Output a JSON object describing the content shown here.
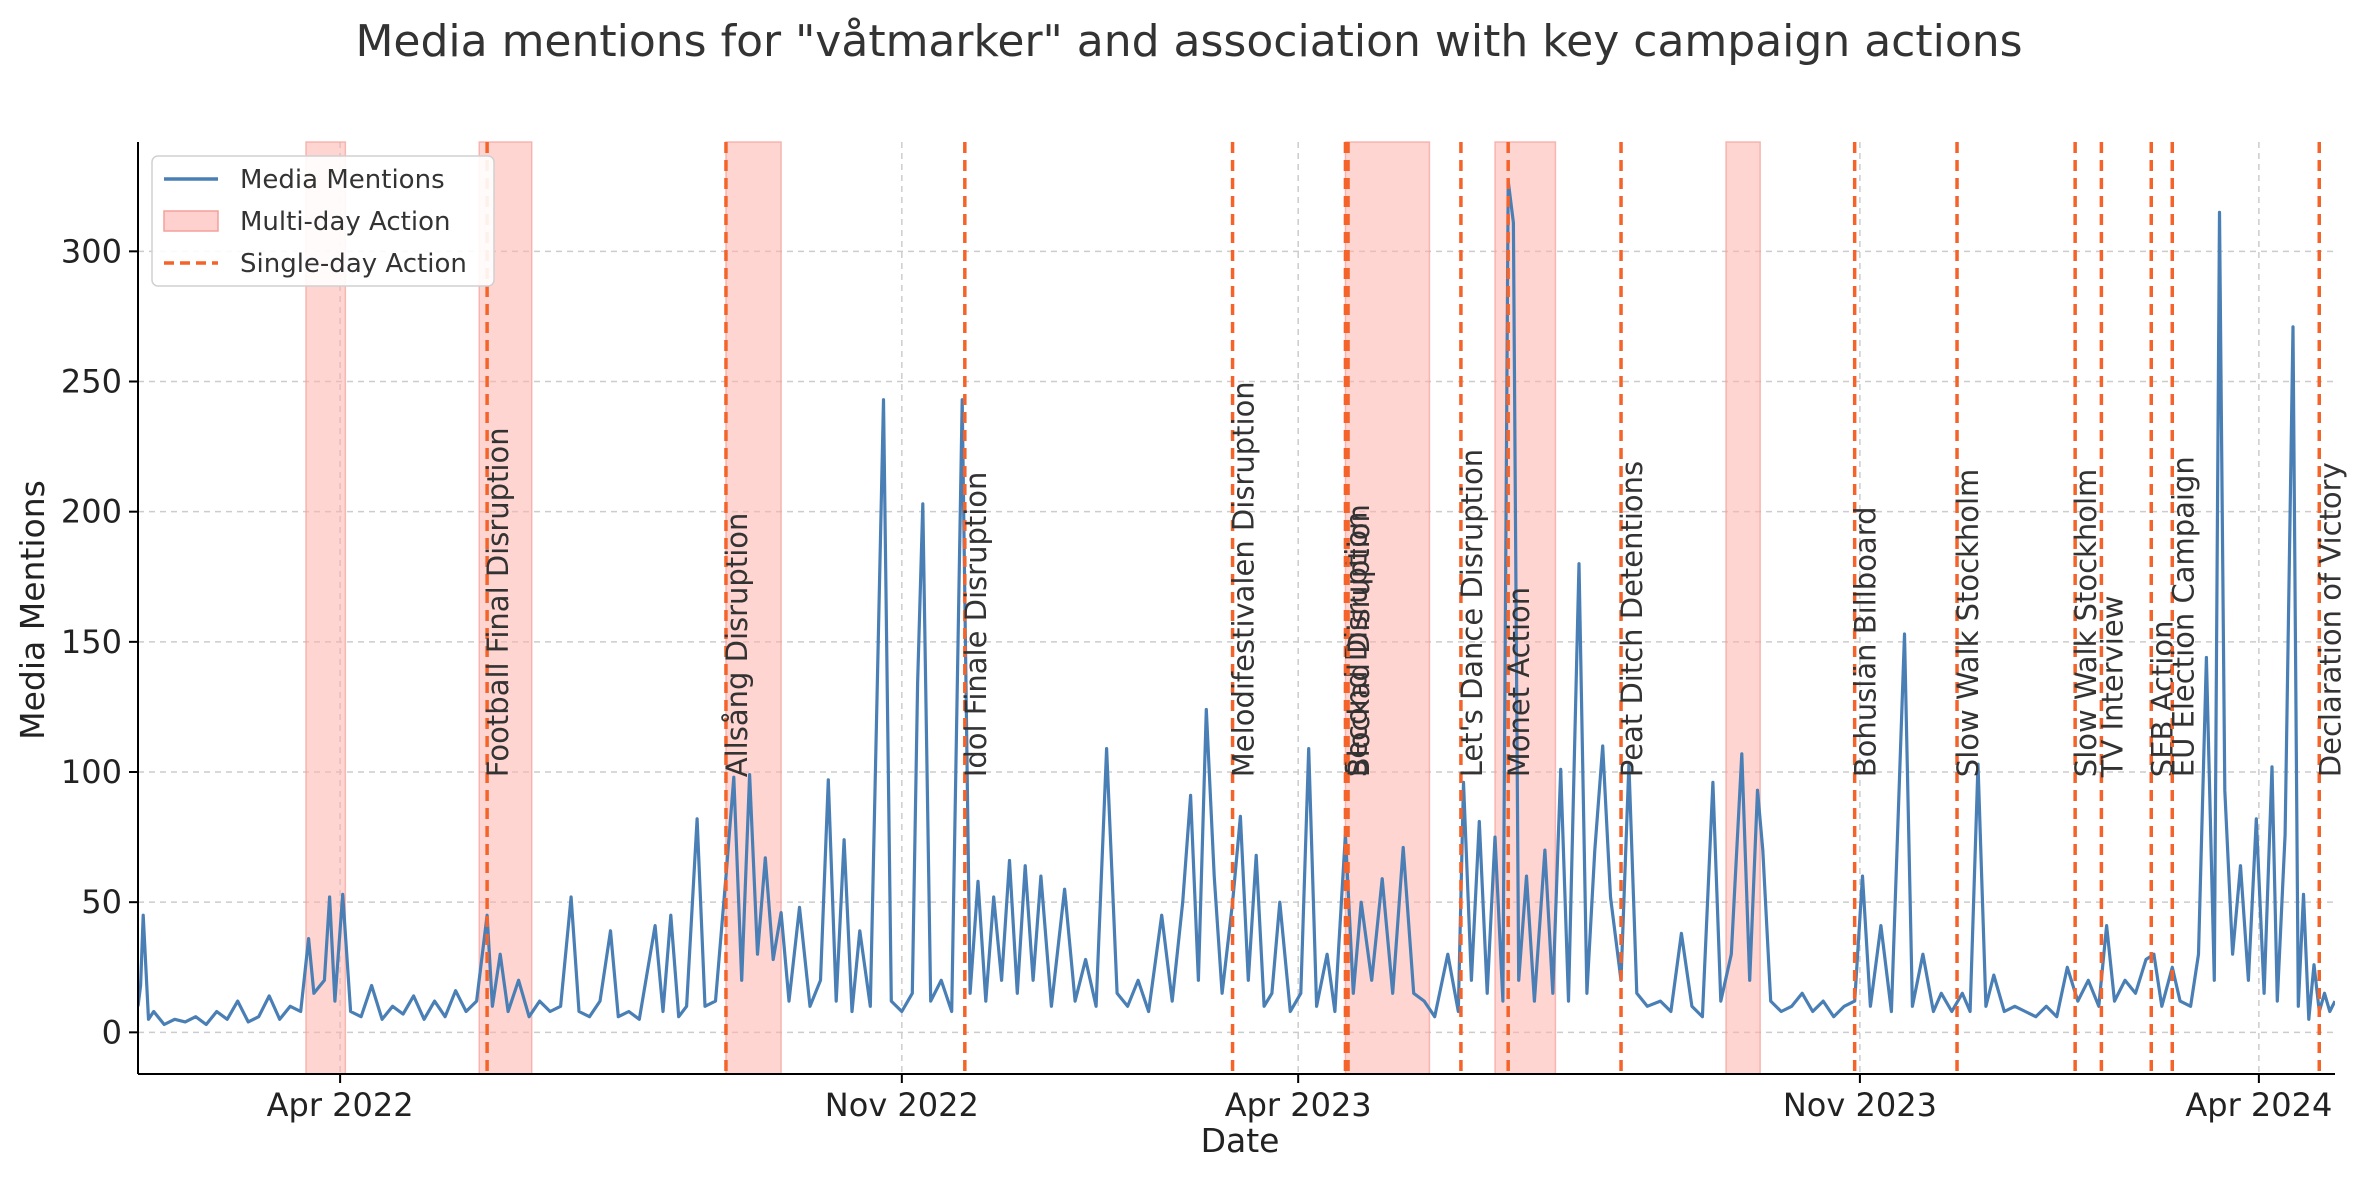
{
  "chart_data": {
    "type": "line",
    "title": "Media mentions for \"våtmarker\" and association with key campaign actions",
    "xlabel": "Date",
    "ylabel": "Media Mentions",
    "xlim": [
      "2022-01-14",
      "2024-04-30"
    ],
    "ylim": [
      -16,
      342
    ],
    "grid": true,
    "legend_position": "top-left",
    "x_ticks": [
      {
        "date": "2022-04-01",
        "label": "Apr 2022"
      },
      {
        "date": "2022-11-01",
        "label": "Nov 2022"
      },
      {
        "date": "2023-04-01",
        "label": "Apr 2023"
      },
      {
        "date": "2023-11-01",
        "label": "Nov 2023"
      },
      {
        "date": "2024-04-01",
        "label": "Apr 2024"
      }
    ],
    "y_ticks": [
      0,
      50,
      100,
      150,
      200,
      250,
      300
    ],
    "legend": [
      {
        "label": "Media Mentions",
        "kind": "line",
        "color": "#4a7fb5"
      },
      {
        "label": "Multi-day Action",
        "kind": "span",
        "color": "#ffb3ad"
      },
      {
        "label": "Single-day Action",
        "kind": "dashed",
        "color": "#f4642a"
      }
    ],
    "multi_day_actions": [
      {
        "start": "2022-03-19",
        "end": "2022-04-03"
      },
      {
        "start": "2022-05-24",
        "end": "2022-06-13"
      },
      {
        "start": "2022-08-26",
        "end": "2022-09-16"
      },
      {
        "start": "2023-04-19",
        "end": "2023-05-21"
      },
      {
        "start": "2023-06-15",
        "end": "2023-07-08"
      },
      {
        "start": "2023-09-11",
        "end": "2023-09-24"
      }
    ],
    "single_day_actions": [
      {
        "date": "2022-05-27",
        "label": "Football Final Disruption"
      },
      {
        "date": "2022-08-26",
        "label": "Allsång Disruption"
      },
      {
        "date": "2022-11-25",
        "label": "Idol Finale Disruption"
      },
      {
        "date": "2023-03-07",
        "label": "Melodifestivalen Disruption"
      },
      {
        "date": "2023-04-19",
        "label": "Second Disruption"
      },
      {
        "date": "2023-04-20",
        "label": "Blockad Disruption"
      },
      {
        "date": "2023-06-02",
        "label": "Let's Dance Disruption"
      },
      {
        "date": "2023-06-20",
        "label": "Monet Action"
      },
      {
        "date": "2023-08-02",
        "label": "Peat Ditch Detentions"
      },
      {
        "date": "2023-10-30",
        "label": "Bohuslän Billboard"
      },
      {
        "date": "2023-12-08",
        "label": "Slow Walk Stockholm"
      },
      {
        "date": "2024-01-22",
        "label": "Slow Walk Stockholm"
      },
      {
        "date": "2024-02-01",
        "label": "TV Interview"
      },
      {
        "date": "2024-02-20",
        "label": "SEB Action"
      },
      {
        "date": "2024-02-28",
        "label": "EU Election Campaign"
      },
      {
        "date": "2024-04-24",
        "label": "Declaration of Victory"
      }
    ],
    "series": [
      {
        "name": "Media Mentions",
        "color": "#4a7fb5",
        "points": [
          [
            "2022-01-14",
            10
          ],
          [
            "2022-01-15",
            18
          ],
          [
            "2022-01-16",
            45
          ],
          [
            "2022-01-18",
            5
          ],
          [
            "2022-01-20",
            8
          ],
          [
            "2022-01-24",
            3
          ],
          [
            "2022-01-28",
            5
          ],
          [
            "2022-02-01",
            4
          ],
          [
            "2022-02-05",
            6
          ],
          [
            "2022-02-09",
            3
          ],
          [
            "2022-02-13",
            8
          ],
          [
            "2022-02-17",
            5
          ],
          [
            "2022-02-21",
            12
          ],
          [
            "2022-02-25",
            4
          ],
          [
            "2022-03-01",
            6
          ],
          [
            "2022-03-05",
            14
          ],
          [
            "2022-03-09",
            5
          ],
          [
            "2022-03-13",
            10
          ],
          [
            "2022-03-17",
            8
          ],
          [
            "2022-03-20",
            36
          ],
          [
            "2022-03-22",
            15
          ],
          [
            "2022-03-26",
            20
          ],
          [
            "2022-03-28",
            52
          ],
          [
            "2022-03-30",
            12
          ],
          [
            "2022-04-02",
            53
          ],
          [
            "2022-04-05",
            8
          ],
          [
            "2022-04-09",
            6
          ],
          [
            "2022-04-13",
            18
          ],
          [
            "2022-04-17",
            5
          ],
          [
            "2022-04-21",
            10
          ],
          [
            "2022-04-25",
            7
          ],
          [
            "2022-04-29",
            14
          ],
          [
            "2022-05-03",
            5
          ],
          [
            "2022-05-07",
            12
          ],
          [
            "2022-05-11",
            6
          ],
          [
            "2022-05-15",
            16
          ],
          [
            "2022-05-19",
            8
          ],
          [
            "2022-05-23",
            12
          ],
          [
            "2022-05-27",
            45
          ],
          [
            "2022-05-29",
            10
          ],
          [
            "2022-06-01",
            30
          ],
          [
            "2022-06-04",
            8
          ],
          [
            "2022-06-08",
            20
          ],
          [
            "2022-06-12",
            6
          ],
          [
            "2022-06-16",
            12
          ],
          [
            "2022-06-20",
            8
          ],
          [
            "2022-06-24",
            10
          ],
          [
            "2022-06-28",
            52
          ],
          [
            "2022-07-01",
            8
          ],
          [
            "2022-07-05",
            6
          ],
          [
            "2022-07-09",
            12
          ],
          [
            "2022-07-13",
            39
          ],
          [
            "2022-07-16",
            6
          ],
          [
            "2022-07-20",
            8
          ],
          [
            "2022-07-24",
            5
          ],
          [
            "2022-07-30",
            41
          ],
          [
            "2022-08-02",
            8
          ],
          [
            "2022-08-05",
            45
          ],
          [
            "2022-08-08",
            6
          ],
          [
            "2022-08-11",
            10
          ],
          [
            "2022-08-15",
            82
          ],
          [
            "2022-08-18",
            10
          ],
          [
            "2022-08-22",
            12
          ],
          [
            "2022-08-26",
            60
          ],
          [
            "2022-08-29",
            98
          ],
          [
            "2022-09-01",
            20
          ],
          [
            "2022-09-04",
            99
          ],
          [
            "2022-09-07",
            30
          ],
          [
            "2022-09-10",
            67
          ],
          [
            "2022-09-13",
            28
          ],
          [
            "2022-09-16",
            46
          ],
          [
            "2022-09-19",
            12
          ],
          [
            "2022-09-23",
            48
          ],
          [
            "2022-09-27",
            10
          ],
          [
            "2022-10-01",
            20
          ],
          [
            "2022-10-04",
            97
          ],
          [
            "2022-10-07",
            12
          ],
          [
            "2022-10-10",
            74
          ],
          [
            "2022-10-13",
            8
          ],
          [
            "2022-10-16",
            39
          ],
          [
            "2022-10-20",
            10
          ],
          [
            "2022-10-25",
            243
          ],
          [
            "2022-10-28",
            12
          ],
          [
            "2022-11-01",
            8
          ],
          [
            "2022-11-05",
            15
          ],
          [
            "2022-11-07",
            134
          ],
          [
            "2022-11-09",
            203
          ],
          [
            "2022-11-12",
            12
          ],
          [
            "2022-11-16",
            20
          ],
          [
            "2022-11-20",
            8
          ],
          [
            "2022-11-24",
            243
          ],
          [
            "2022-11-27",
            15
          ],
          [
            "2022-11-30",
            58
          ],
          [
            "2022-12-03",
            12
          ],
          [
            "2022-12-06",
            52
          ],
          [
            "2022-12-09",
            20
          ],
          [
            "2022-12-12",
            66
          ],
          [
            "2022-12-15",
            15
          ],
          [
            "2022-12-18",
            64
          ],
          [
            "2022-12-21",
            20
          ],
          [
            "2022-12-24",
            60
          ],
          [
            "2022-12-28",
            10
          ],
          [
            "2023-01-02",
            55
          ],
          [
            "2023-01-06",
            12
          ],
          [
            "2023-01-10",
            28
          ],
          [
            "2023-01-14",
            10
          ],
          [
            "2023-01-18",
            109
          ],
          [
            "2023-01-22",
            15
          ],
          [
            "2023-01-26",
            10
          ],
          [
            "2023-01-30",
            20
          ],
          [
            "2023-02-03",
            8
          ],
          [
            "2023-02-08",
            45
          ],
          [
            "2023-02-12",
            12
          ],
          [
            "2023-02-16",
            50
          ],
          [
            "2023-02-19",
            91
          ],
          [
            "2023-02-22",
            20
          ],
          [
            "2023-02-25",
            124
          ],
          [
            "2023-02-28",
            60
          ],
          [
            "2023-03-03",
            15
          ],
          [
            "2023-03-07",
            50
          ],
          [
            "2023-03-10",
            83
          ],
          [
            "2023-03-13",
            20
          ],
          [
            "2023-03-16",
            68
          ],
          [
            "2023-03-19",
            10
          ],
          [
            "2023-03-22",
            15
          ],
          [
            "2023-03-25",
            50
          ],
          [
            "2023-03-29",
            8
          ],
          [
            "2023-04-02",
            15
          ],
          [
            "2023-04-05",
            109
          ],
          [
            "2023-04-08",
            10
          ],
          [
            "2023-04-12",
            30
          ],
          [
            "2023-04-15",
            8
          ],
          [
            "2023-04-19",
            76
          ],
          [
            "2023-04-22",
            15
          ],
          [
            "2023-04-25",
            50
          ],
          [
            "2023-04-29",
            20
          ],
          [
            "2023-05-03",
            59
          ],
          [
            "2023-05-07",
            15
          ],
          [
            "2023-05-11",
            71
          ],
          [
            "2023-05-15",
            15
          ],
          [
            "2023-05-19",
            12
          ],
          [
            "2023-05-23",
            6
          ],
          [
            "2023-05-28",
            30
          ],
          [
            "2023-06-01",
            8
          ],
          [
            "2023-06-03",
            96
          ],
          [
            "2023-06-06",
            20
          ],
          [
            "2023-06-09",
            81
          ],
          [
            "2023-06-12",
            15
          ],
          [
            "2023-06-15",
            75
          ],
          [
            "2023-06-18",
            12
          ],
          [
            "2023-06-20",
            327
          ],
          [
            "2023-06-22",
            311
          ],
          [
            "2023-06-24",
            20
          ],
          [
            "2023-06-27",
            60
          ],
          [
            "2023-06-30",
            12
          ],
          [
            "2023-07-04",
            70
          ],
          [
            "2023-07-07",
            15
          ],
          [
            "2023-07-10",
            101
          ],
          [
            "2023-07-13",
            12
          ],
          [
            "2023-07-17",
            180
          ],
          [
            "2023-07-20",
            15
          ],
          [
            "2023-07-23",
            70
          ],
          [
            "2023-07-26",
            110
          ],
          [
            "2023-07-29",
            52
          ],
          [
            "2023-08-02",
            20
          ],
          [
            "2023-08-05",
            103
          ],
          [
            "2023-08-08",
            15
          ],
          [
            "2023-08-12",
            10
          ],
          [
            "2023-08-17",
            12
          ],
          [
            "2023-08-21",
            8
          ],
          [
            "2023-08-25",
            38
          ],
          [
            "2023-08-29",
            10
          ],
          [
            "2023-09-02",
            6
          ],
          [
            "2023-09-06",
            96
          ],
          [
            "2023-09-09",
            12
          ],
          [
            "2023-09-13",
            30
          ],
          [
            "2023-09-17",
            107
          ],
          [
            "2023-09-20",
            20
          ],
          [
            "2023-09-23",
            93
          ],
          [
            "2023-09-25",
            70
          ],
          [
            "2023-09-28",
            12
          ],
          [
            "2023-10-02",
            8
          ],
          [
            "2023-10-06",
            10
          ],
          [
            "2023-10-10",
            15
          ],
          [
            "2023-10-14",
            8
          ],
          [
            "2023-10-18",
            12
          ],
          [
            "2023-10-22",
            6
          ],
          [
            "2023-10-26",
            10
          ],
          [
            "2023-10-30",
            12
          ],
          [
            "2023-11-02",
            60
          ],
          [
            "2023-11-05",
            10
          ],
          [
            "2023-11-09",
            41
          ],
          [
            "2023-11-13",
            8
          ],
          [
            "2023-11-18",
            153
          ],
          [
            "2023-11-21",
            10
          ],
          [
            "2023-11-25",
            30
          ],
          [
            "2023-11-29",
            8
          ],
          [
            "2023-12-02",
            15
          ],
          [
            "2023-12-06",
            8
          ],
          [
            "2023-12-10",
            15
          ],
          [
            "2023-12-13",
            8
          ],
          [
            "2023-12-16",
            103
          ],
          [
            "2023-12-19",
            10
          ],
          [
            "2023-12-22",
            22
          ],
          [
            "2023-12-26",
            8
          ],
          [
            "2023-12-30",
            10
          ],
          [
            "2024-01-03",
            8
          ],
          [
            "2024-01-07",
            6
          ],
          [
            "2024-01-11",
            10
          ],
          [
            "2024-01-15",
            6
          ],
          [
            "2024-01-19",
            25
          ],
          [
            "2024-01-23",
            12
          ],
          [
            "2024-01-27",
            20
          ],
          [
            "2024-01-31",
            10
          ],
          [
            "2024-02-03",
            41
          ],
          [
            "2024-02-06",
            12
          ],
          [
            "2024-02-10",
            20
          ],
          [
            "2024-02-14",
            15
          ],
          [
            "2024-02-18",
            28
          ],
          [
            "2024-02-21",
            30
          ],
          [
            "2024-02-24",
            10
          ],
          [
            "2024-02-28",
            25
          ],
          [
            "2024-03-02",
            12
          ],
          [
            "2024-03-06",
            10
          ],
          [
            "2024-03-09",
            30
          ],
          [
            "2024-03-12",
            144
          ],
          [
            "2024-03-15",
            20
          ],
          [
            "2024-03-17",
            315
          ],
          [
            "2024-03-19",
            93
          ],
          [
            "2024-03-22",
            30
          ],
          [
            "2024-03-25",
            64
          ],
          [
            "2024-03-28",
            20
          ],
          [
            "2024-03-31",
            82
          ],
          [
            "2024-04-03",
            15
          ],
          [
            "2024-04-06",
            102
          ],
          [
            "2024-04-08",
            12
          ],
          [
            "2024-04-11",
            76
          ],
          [
            "2024-04-14",
            271
          ],
          [
            "2024-04-16",
            10
          ],
          [
            "2024-04-18",
            53
          ],
          [
            "2024-04-20",
            5
          ],
          [
            "2024-04-22",
            26
          ],
          [
            "2024-04-24",
            8
          ],
          [
            "2024-04-26",
            15
          ],
          [
            "2024-04-28",
            8
          ],
          [
            "2024-04-30",
            12
          ]
        ]
      }
    ]
  }
}
